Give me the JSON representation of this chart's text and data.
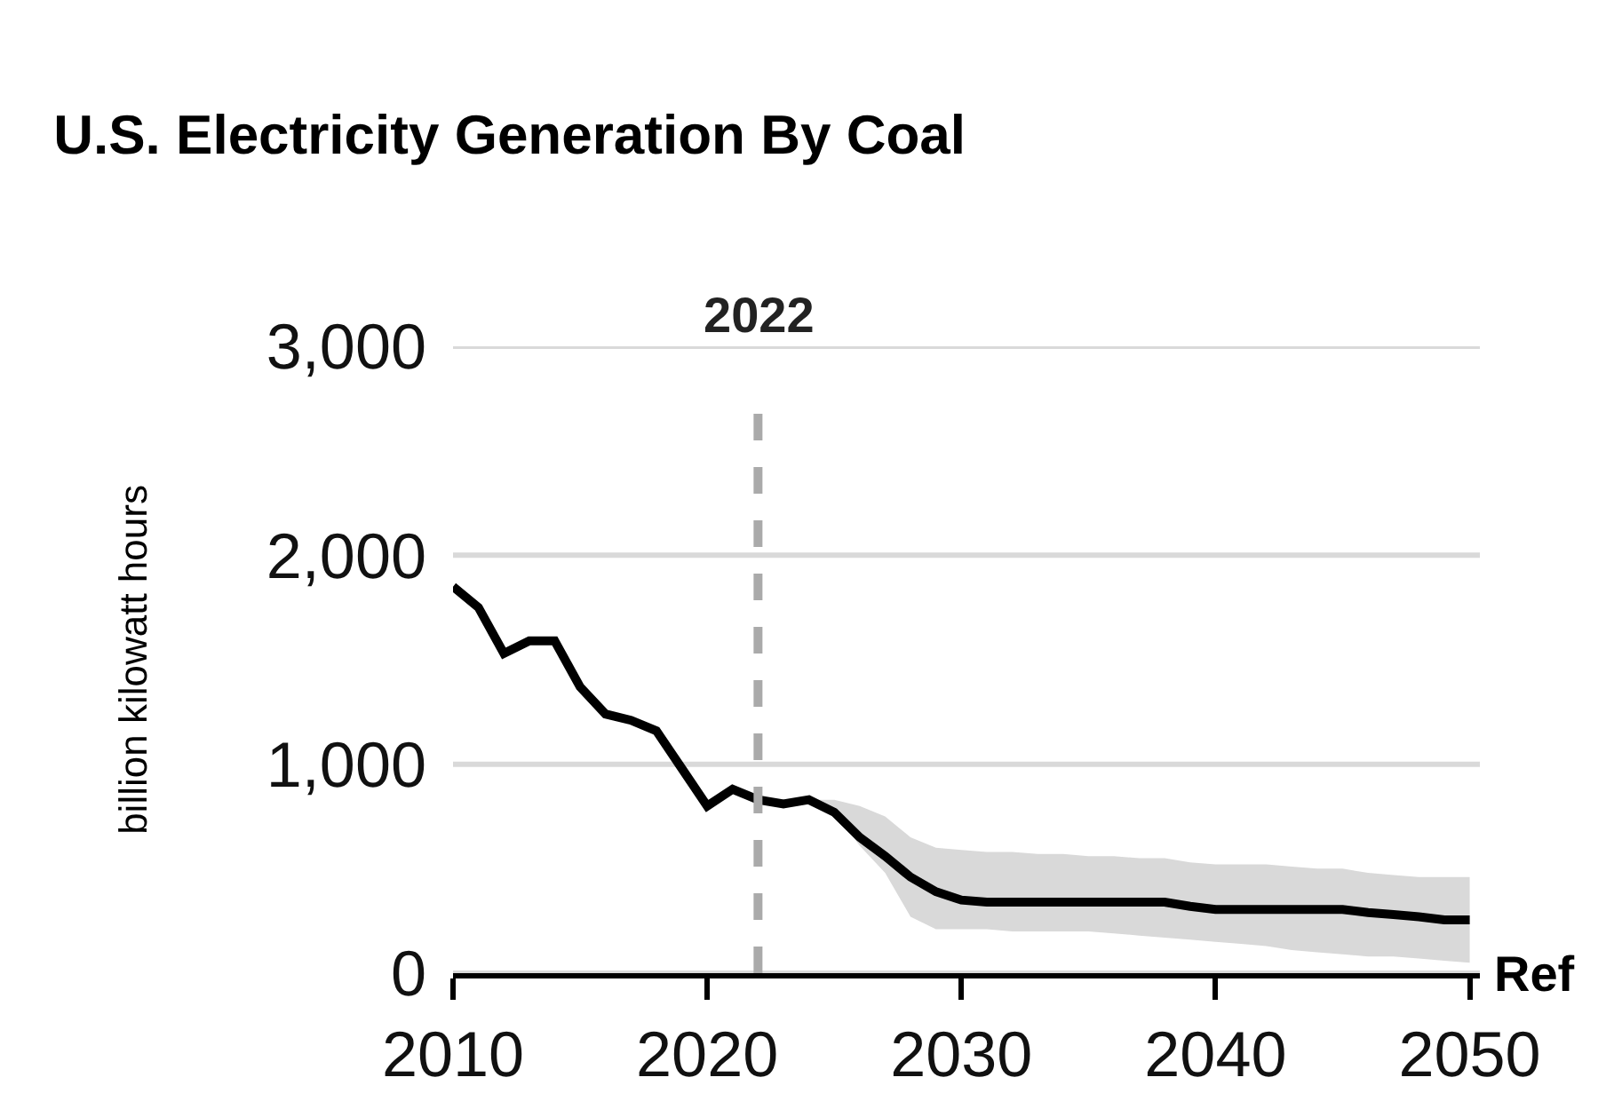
{
  "chart_data": {
    "type": "line",
    "title": "U.S. Electricity Generation By Coal",
    "ylabel": "billion kilowatt hours",
    "x": [
      2010,
      2011,
      2012,
      2013,
      2014,
      2015,
      2016,
      2017,
      2018,
      2019,
      2020,
      2021,
      2022,
      2023,
      2024,
      2025,
      2026,
      2027,
      2028,
      2029,
      2030,
      2031,
      2032,
      2033,
      2034,
      2035,
      2036,
      2037,
      2038,
      2039,
      2040,
      2041,
      2042,
      2043,
      2044,
      2045,
      2046,
      2047,
      2048,
      2049,
      2050
    ],
    "series": [
      {
        "color": "#000000",
        "values": [
          1850,
          1750,
          1530,
          1590,
          1590,
          1370,
          1240,
          1210,
          1160,
          980,
          800,
          880,
          830,
          810,
          830,
          770,
          650,
          560,
          460,
          390,
          350,
          340,
          340,
          340,
          340,
          340,
          340,
          340,
          340,
          320,
          305,
          305,
          305,
          305,
          305,
          305,
          290,
          280,
          270,
          255,
          255
        ],
        "lower": [
          null,
          null,
          null,
          null,
          null,
          null,
          null,
          null,
          null,
          null,
          null,
          null,
          null,
          null,
          830,
          770,
          610,
          480,
          270,
          210,
          210,
          210,
          200,
          200,
          200,
          200,
          190,
          180,
          170,
          160,
          150,
          140,
          130,
          110,
          100,
          90,
          80,
          80,
          70,
          60,
          50
        ],
        "upper": [
          null,
          null,
          null,
          null,
          null,
          null,
          null,
          null,
          null,
          null,
          null,
          null,
          null,
          null,
          830,
          830,
          800,
          750,
          650,
          600,
          590,
          580,
          580,
          570,
          570,
          560,
          560,
          550,
          550,
          530,
          520,
          520,
          520,
          510,
          500,
          500,
          480,
          470,
          460,
          460,
          460
        ]
      }
    ],
    "xlim": [
      2010,
      2050.4
    ],
    "xticks": [
      2010,
      2020,
      2030,
      2040,
      2050
    ],
    "ylim": [
      0,
      3000
    ],
    "yticks": [
      {
        "value": 0,
        "label": "0"
      },
      {
        "value": 1000,
        "label": "1,000"
      },
      {
        "value": 2000,
        "label": "2,000"
      },
      {
        "value": 3000,
        "label": "3,000"
      }
    ],
    "grid": "y",
    "marker": "none",
    "line_style": "solid",
    "ref_lines": [
      {
        "axis": "x",
        "value": 2022,
        "label": "2022",
        "color": "#aaaaaa",
        "line_style": "dashed"
      }
    ],
    "annotations": [
      "Ref"
    ]
  }
}
